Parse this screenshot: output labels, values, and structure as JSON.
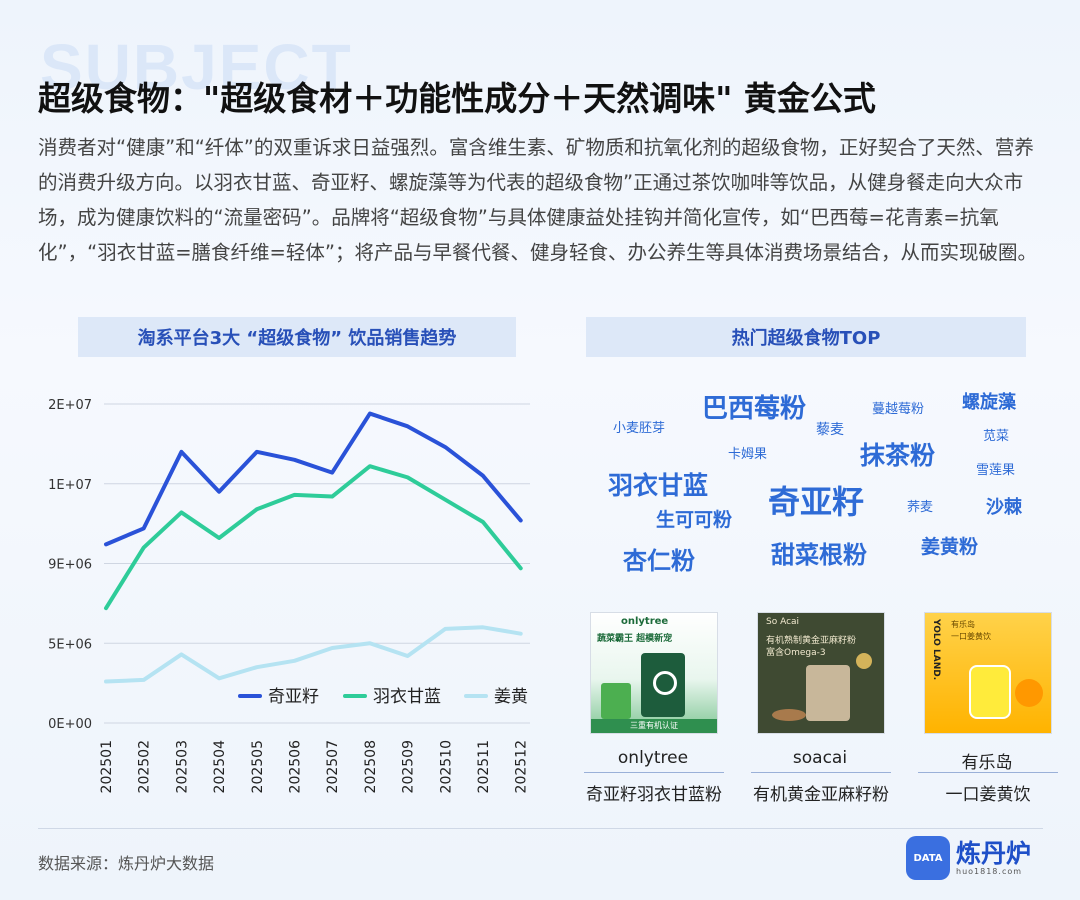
{
  "watermark": "SUBJECT",
  "title": "超级食物：\"超级食材＋功能性成分＋天然调味\" 黄金公式",
  "intro": "消费者对“健康”和“纤体”的双重诉求日益强烈。富含维生素、矿物质和抗氧化剂的超级食物，正好契合了天然、营养的消费升级方向。以羽衣甘蓝、奇亚籽、螺旋藻等为代表的超级食物”正通过茶饮咖啡等饮品，从健身餐走向大众市场，成为健康饮料的“流量密码”。品牌将“超级食物”与具体健康益处挂钩并简化宣传，如“巴西莓=花青素=抗氧化”，“羽衣甘蓝=膳食纤维=轻体”；将产品与早餐代餐、健身轻食、办公养生等具体消费场景结合，从而实现破圈。",
  "left_panel_title": "淘系平台3大 “超级食物” 饮品销售趋势",
  "right_panel_title": "热门超级食物TOP",
  "chart_data": {
    "type": "line",
    "x": [
      "202501",
      "202502",
      "202503",
      "202504",
      "202505",
      "202506",
      "202507",
      "202508",
      "202509",
      "202510",
      "202511",
      "202512"
    ],
    "yticks": [
      "0E+00",
      "5E+06",
      "9E+06",
      "1E+07",
      "2E+07"
    ],
    "ylim": [
      0,
      20000000
    ],
    "series": [
      {
        "name": "奇亚籽",
        "color": "#2a52d8",
        "values": [
          11200000,
          12200000,
          17000000,
          14500000,
          17000000,
          16500000,
          15700000,
          19400000,
          18600000,
          17300000,
          15500000,
          12700000
        ]
      },
      {
        "name": "羽衣甘蓝",
        "color": "#2ecc99",
        "values": [
          7200000,
          11000000,
          13200000,
          11600000,
          13400000,
          14300000,
          14200000,
          16100000,
          15400000,
          14000000,
          12600000,
          9700000
        ]
      },
      {
        "name": "姜黄",
        "color": "#b5e3f2",
        "values": [
          2600000,
          2700000,
          4300000,
          2800000,
          3500000,
          3900000,
          4700000,
          5000000,
          4200000,
          5900000,
          6000000,
          5600000
        ]
      }
    ]
  },
  "word_cloud": [
    {
      "text": "巴西莓粉",
      "size": 26
    },
    {
      "text": "蔓越莓粉",
      "size": 13
    },
    {
      "text": "螺旋藻",
      "size": 18
    },
    {
      "text": "小麦胚芽",
      "size": 13
    },
    {
      "text": "藜麦",
      "size": 14
    },
    {
      "text": "苋菜",
      "size": 13
    },
    {
      "text": "卡姆果",
      "size": 13
    },
    {
      "text": "抹茶粉",
      "size": 25
    },
    {
      "text": "雪莲果",
      "size": 13
    },
    {
      "text": "羽衣甘蓝",
      "size": 25
    },
    {
      "text": "奇亚籽",
      "size": 32
    },
    {
      "text": "荞麦",
      "size": 13
    },
    {
      "text": "沙棘",
      "size": 18
    },
    {
      "text": "生可可粉",
      "size": 19
    },
    {
      "text": "杏仁粉",
      "size": 24
    },
    {
      "text": "甜菜根粉",
      "size": 24
    },
    {
      "text": "姜黄粉",
      "size": 19
    }
  ],
  "products": [
    {
      "brand": "onlytree",
      "desc": "奇亚籽羽衣甘蓝粉",
      "img_brand": "onlytree",
      "img_line1": "蔬菜霸王 超模新宠",
      "img_badge": "三重有机认证"
    },
    {
      "brand": "soacai",
      "desc": "有机黄金亚麻籽粉",
      "img_brand": "So Acai",
      "img_line1": "有机熟制黄金亚麻籽粉",
      "img_line2": "富含Omega-3"
    },
    {
      "brand": "有乐岛",
      "desc": "一口姜黄饮",
      "img_brand": "YOLO LAND.",
      "img_line1": "有乐岛",
      "img_line2": "一口姜黄饮"
    }
  ],
  "source": "数据来源：炼丹炉大数据",
  "logo": {
    "badge": "DATA",
    "name": "炼丹炉",
    "url": "huo1818.com"
  }
}
